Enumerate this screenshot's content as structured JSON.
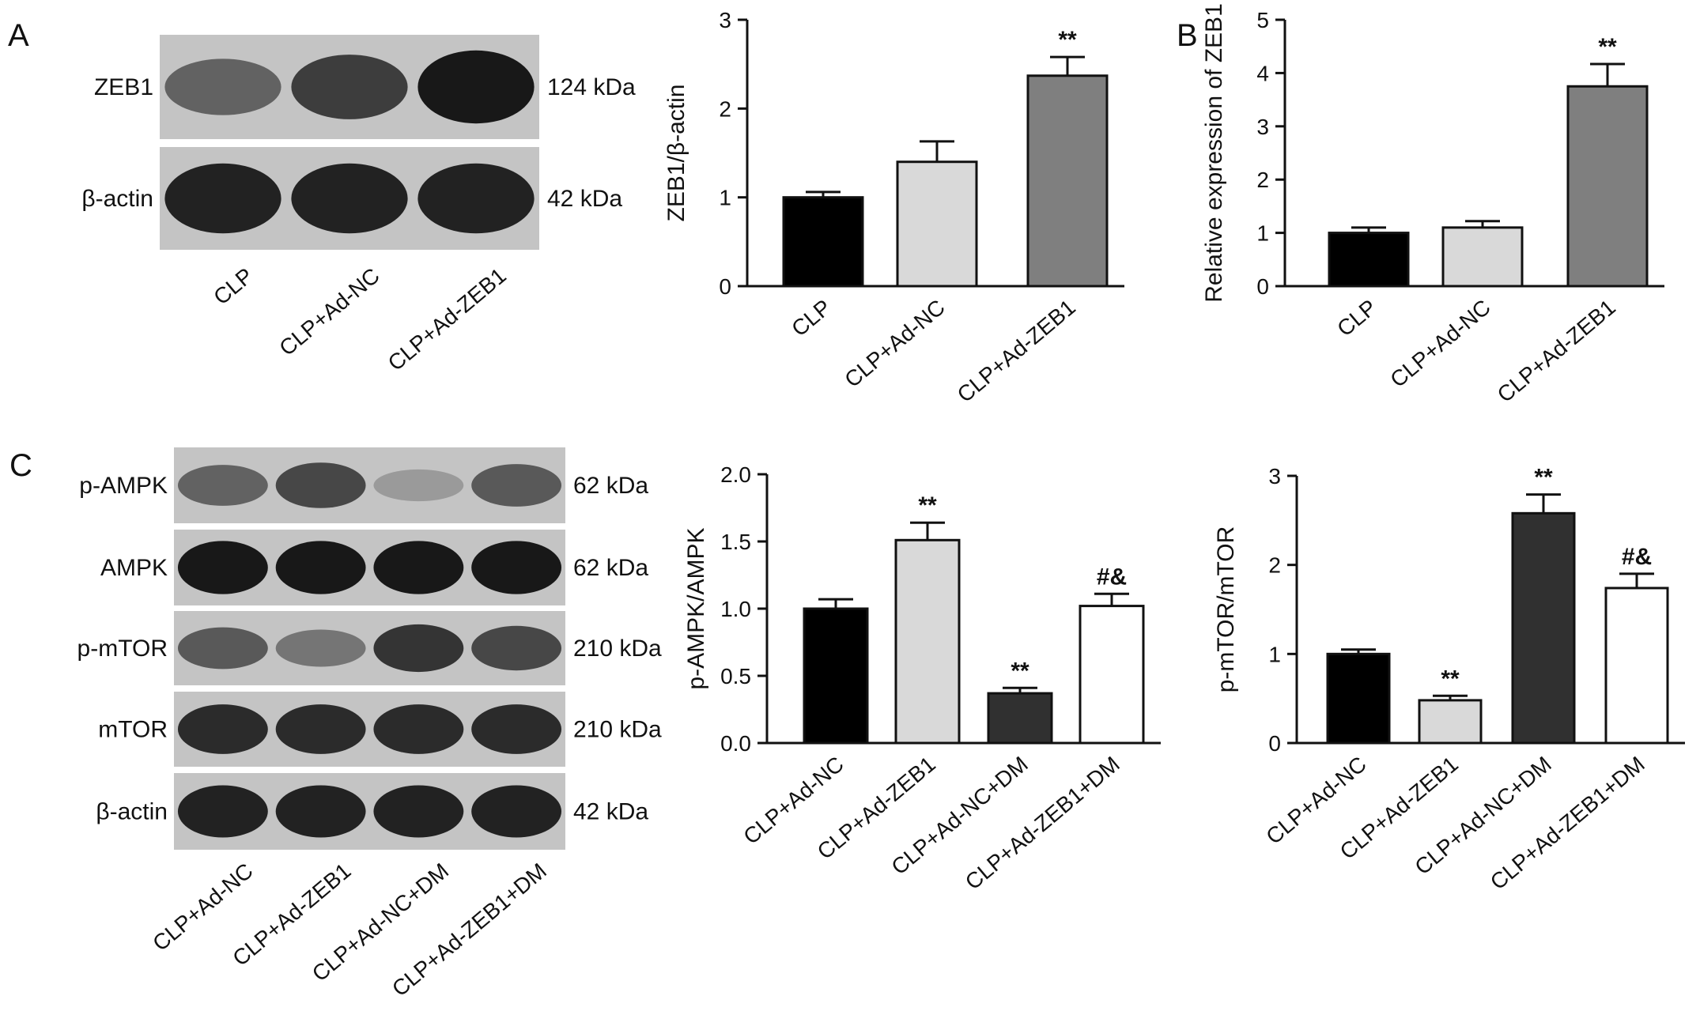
{
  "panels": {
    "a": "A",
    "b": "B",
    "c": "C"
  },
  "blot_a": {
    "rows": [
      {
        "label": "ZEB1",
        "kda": "124 kDa",
        "bands": [
          0.55,
          0.75,
          0.95
        ]
      },
      {
        "label": "β-actin",
        "kda": "42 kDa",
        "bands": [
          0.9,
          0.9,
          0.9
        ]
      }
    ],
    "lanes": [
      "CLP",
      "CLP+Ad-NC",
      "CLP+Ad-ZEB1"
    ]
  },
  "blot_c": {
    "rows": [
      {
        "label": "p-AMPK",
        "kda": "62 kDa",
        "bands": [
          0.55,
          0.7,
          0.25,
          0.6
        ]
      },
      {
        "label": "AMPK",
        "kda": "62 kDa",
        "bands": [
          0.95,
          0.95,
          0.95,
          0.95
        ]
      },
      {
        "label": "p-mTOR",
        "kda": "210 kDa",
        "bands": [
          0.6,
          0.45,
          0.8,
          0.7
        ]
      },
      {
        "label": "mTOR",
        "kda": "210 kDa",
        "bands": [
          0.85,
          0.85,
          0.85,
          0.85
        ]
      },
      {
        "label": "β-actin",
        "kda": "42 kDa",
        "bands": [
          0.9,
          0.9,
          0.9,
          0.9
        ]
      }
    ],
    "lanes": [
      "CLP+Ad-NC",
      "CLP+Ad-ZEB1",
      "CLP+Ad-NC+DM",
      "CLP+Ad-ZEB1+DM"
    ]
  },
  "colors": {
    "black": "#000000",
    "light_gray": "#d9d9d9",
    "mid_gray": "#7f7f7f",
    "dark_gray": "#303030",
    "white": "#ffffff",
    "outline": "#111111"
  },
  "chart_data": [
    {
      "type": "bar",
      "categories": [
        "CLP",
        "CLP+Ad-NC",
        "CLP+Ad-ZEB1"
      ],
      "values": [
        1.0,
        1.4,
        2.37
      ],
      "errors": [
        0.06,
        0.23,
        0.21
      ],
      "annotations": [
        "",
        "",
        "**"
      ],
      "fills": [
        "black",
        "light_gray",
        "mid_gray"
      ],
      "ylabel": "ZEB1/β-actin",
      "ylim": [
        0,
        3
      ],
      "yticks": [
        "0",
        "1",
        "2",
        "3"
      ]
    },
    {
      "type": "bar",
      "categories": [
        "CLP",
        "CLP+Ad-NC",
        "CLP+Ad-ZEB1"
      ],
      "values": [
        1.0,
        1.1,
        3.75
      ],
      "errors": [
        0.1,
        0.12,
        0.42
      ],
      "annotations": [
        "",
        "",
        "**"
      ],
      "fills": [
        "black",
        "light_gray",
        "mid_gray"
      ],
      "ylabel": "Relative expression of ZEB1",
      "ylim": [
        0,
        5
      ],
      "yticks": [
        "0",
        "1",
        "2",
        "3",
        "4",
        "5"
      ]
    },
    {
      "type": "bar",
      "categories": [
        "CLP+Ad-NC",
        "CLP+Ad-ZEB1",
        "CLP+Ad-NC+DM",
        "CLP+Ad-ZEB1+DM"
      ],
      "values": [
        1.0,
        1.51,
        0.37,
        1.02
      ],
      "errors": [
        0.07,
        0.13,
        0.04,
        0.09
      ],
      "annotations": [
        "",
        "**",
        "**",
        "#&"
      ],
      "fills": [
        "black",
        "light_gray",
        "dark_gray",
        "white"
      ],
      "ylabel": "p-AMPK/AMPK",
      "ylim": [
        0,
        2
      ],
      "yticks": [
        "0.0",
        "0.5",
        "1.0",
        "1.5",
        "2.0"
      ]
    },
    {
      "type": "bar",
      "categories": [
        "CLP+Ad-NC",
        "CLP+Ad-ZEB1",
        "CLP+Ad-NC+DM",
        "CLP+Ad-ZEB1+DM"
      ],
      "values": [
        1.0,
        0.48,
        2.58,
        1.74
      ],
      "errors": [
        0.05,
        0.05,
        0.21,
        0.16
      ],
      "annotations": [
        "",
        "**",
        "**",
        "#&"
      ],
      "fills": [
        "black",
        "light_gray",
        "dark_gray",
        "white"
      ],
      "ylabel": "p-mTOR/mTOR",
      "ylim": [
        0,
        3
      ],
      "yticks": [
        "0",
        "1",
        "2",
        "3"
      ]
    }
  ]
}
